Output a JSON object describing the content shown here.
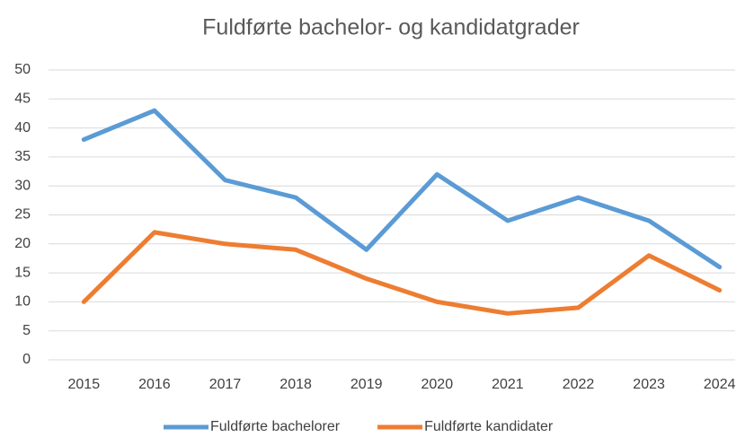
{
  "chart_data": {
    "type": "line",
    "title": "Fuldførte bachelor- og kandidatgrader",
    "categories": [
      "2015",
      "2016",
      "2017",
      "2018",
      "2019",
      "2020",
      "2021",
      "2022",
      "2023",
      "2024"
    ],
    "series": [
      {
        "name": "Fuldførte bachelorer",
        "color": "#5b9bd5",
        "values": [
          38,
          43,
          31,
          28,
          19,
          32,
          24,
          28,
          24,
          16
        ]
      },
      {
        "name": "Fuldførte kandidater",
        "color": "#ed7d31",
        "values": [
          10,
          22,
          20,
          19,
          14,
          10,
          8,
          9,
          18,
          12
        ]
      }
    ],
    "ylim": [
      0,
      50
    ],
    "yticks": [
      0,
      5,
      10,
      15,
      20,
      25,
      30,
      35,
      40,
      45,
      50
    ],
    "grid": true,
    "legend": "bottom"
  }
}
